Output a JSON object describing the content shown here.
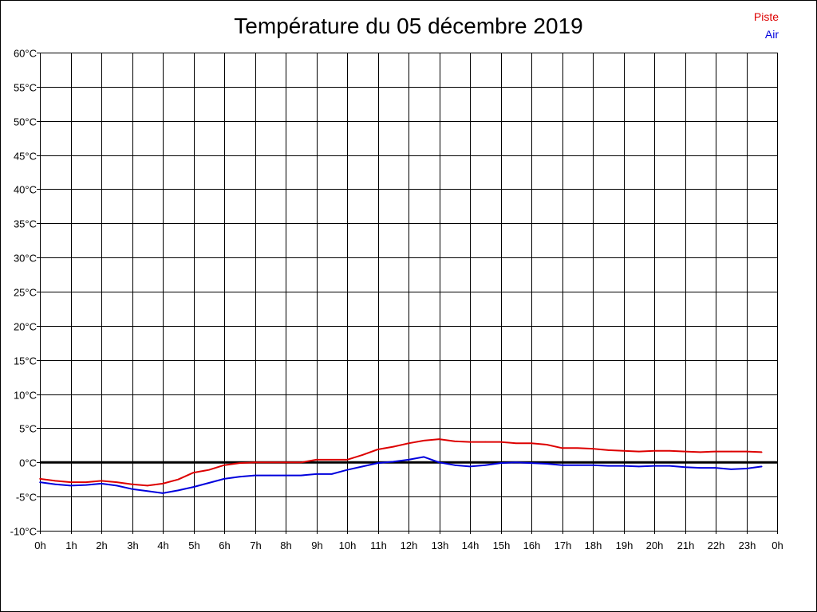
{
  "chart_data": {
    "type": "line",
    "title": "Température du 05 décembre 2019",
    "xlabel": "",
    "ylabel": "",
    "xlim": [
      0,
      24
    ],
    "ylim": [
      -10,
      60
    ],
    "y_step": 5,
    "grid": true,
    "legend_position": "top-right",
    "x_tick_labels": [
      "0h",
      "1h",
      "2h",
      "3h",
      "4h",
      "5h",
      "6h",
      "7h",
      "8h",
      "9h",
      "10h",
      "11h",
      "12h",
      "13h",
      "14h",
      "15h",
      "16h",
      "17h",
      "18h",
      "19h",
      "20h",
      "21h",
      "22h",
      "23h",
      "0h"
    ],
    "y_tick_labels": [
      "-10°C",
      "-5°C",
      "0°C",
      "5°C",
      "10°C",
      "15°C",
      "20°C",
      "25°C",
      "30°C",
      "35°C",
      "40°C",
      "45°C",
      "50°C",
      "55°C",
      "60°C"
    ],
    "reference_line": 0,
    "series": [
      {
        "name": "Piste",
        "color": "#dd0000",
        "x": [
          0,
          0.5,
          1,
          1.5,
          2,
          2.5,
          3,
          3.5,
          4,
          4.5,
          5,
          5.5,
          6,
          6.5,
          7,
          7.5,
          8,
          8.5,
          9,
          9.5,
          10,
          10.5,
          11,
          11.5,
          12,
          12.5,
          13,
          13.5,
          14,
          14.5,
          15,
          15.5,
          16,
          16.5,
          17,
          17.5,
          18,
          18.5,
          19,
          19.5,
          20,
          20.5,
          21,
          21.5,
          22,
          22.5,
          23,
          23.5
        ],
        "values": [
          -2.4,
          -2.7,
          -2.9,
          -2.9,
          -2.7,
          -2.9,
          -3.2,
          -3.4,
          -3.1,
          -2.5,
          -1.5,
          -1.1,
          -0.4,
          -0.1,
          0.0,
          0.0,
          0.0,
          0.0,
          0.4,
          0.4,
          0.4,
          1.1,
          1.9,
          2.3,
          2.8,
          3.2,
          3.4,
          3.1,
          3.0,
          3.0,
          3.0,
          2.8,
          2.8,
          2.6,
          2.1,
          2.1,
          2.0,
          1.8,
          1.7,
          1.6,
          1.7,
          1.7,
          1.6,
          1.5,
          1.6,
          1.6,
          1.6,
          1.5
        ]
      },
      {
        "name": "Air",
        "color": "#0000dd",
        "x": [
          0,
          0.5,
          1,
          1.5,
          2,
          2.5,
          3,
          3.5,
          4,
          4.5,
          5,
          5.5,
          6,
          6.5,
          7,
          7.5,
          8,
          8.5,
          9,
          9.5,
          10,
          10.5,
          11,
          11.5,
          12,
          12.5,
          13,
          13.5,
          14,
          14.5,
          15,
          15.5,
          16,
          16.5,
          17,
          17.5,
          18,
          18.5,
          19,
          19.5,
          20,
          20.5,
          21,
          21.5,
          22,
          22.5,
          23,
          23.5
        ],
        "values": [
          -2.9,
          -3.2,
          -3.4,
          -3.3,
          -3.1,
          -3.4,
          -3.9,
          -4.2,
          -4.5,
          -4.1,
          -3.6,
          -3.0,
          -2.4,
          -2.1,
          -1.9,
          -1.9,
          -1.9,
          -1.9,
          -1.7,
          -1.7,
          -1.1,
          -0.6,
          -0.1,
          0.1,
          0.4,
          0.8,
          0.0,
          -0.4,
          -0.6,
          -0.4,
          -0.1,
          0.0,
          -0.1,
          -0.2,
          -0.4,
          -0.4,
          -0.4,
          -0.5,
          -0.5,
          -0.6,
          -0.5,
          -0.5,
          -0.7,
          -0.8,
          -0.8,
          -1.0,
          -0.9,
          -0.6
        ]
      }
    ]
  }
}
